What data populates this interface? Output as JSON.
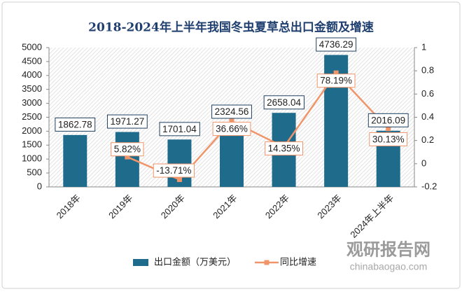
{
  "chart_data": {
    "type": "bar_line",
    "title": "2018-2024年上半年我国冬虫夏草总出口金额及增速",
    "categories": [
      "2018年",
      "2019年",
      "2020年",
      "2021年",
      "2022年",
      "2023年",
      "2024年上半年"
    ],
    "series": [
      {
        "name": "出口金额（万美元）",
        "color": "#1f6b8c",
        "type": "bar",
        "axis": "y",
        "values": [
          1862.78,
          1971.27,
          1701.04,
          2324.56,
          2658.04,
          4736.29,
          2016.09
        ]
      },
      {
        "name": "同比增速",
        "color": "#f0956a",
        "type": "line",
        "axis": "y2",
        "values": [
          null,
          0.0582,
          -0.1371,
          0.3666,
          0.1435,
          0.7819,
          0.3013
        ],
        "value_labels": [
          null,
          "5.82%",
          "-13.71%",
          "36.66%",
          "14.35%",
          "78.19%",
          "30.13%"
        ]
      }
    ],
    "ylim": [
      0,
      5000
    ],
    "yticks": [
      0,
      500,
      1000,
      1500,
      2000,
      2500,
      3000,
      3500,
      4000,
      4500,
      5000
    ],
    "y2lim": [
      -0.2,
      1
    ],
    "y2ticks": [
      -0.2,
      0,
      0.2,
      0.4,
      0.6,
      0.8,
      1
    ],
    "legend": "bottom",
    "watermark": {
      "name": "观研报告网",
      "url": "chinabaogao.com"
    }
  }
}
